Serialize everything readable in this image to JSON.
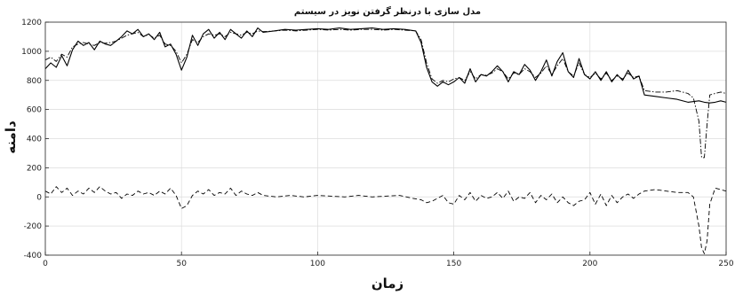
{
  "chart_data": {
    "type": "line",
    "title": "مدل سازی با درنظر گرفتن نویز در سیستم",
    "xlabel": "زمان",
    "ylabel": "دامنه",
    "xlim": [
      0,
      250
    ],
    "ylim": [
      -400,
      1200
    ],
    "xticks": [
      0,
      50,
      100,
      150,
      200,
      250
    ],
    "yticks": [
      -400,
      -200,
      0,
      200,
      400,
      600,
      800,
      1000,
      1200
    ],
    "grid": true,
    "legend": "none",
    "series": [
      {
        "style": "solid",
        "color": "#000000",
        "x": [
          0,
          2,
          4,
          6,
          8,
          10,
          12,
          14,
          16,
          18,
          20,
          22,
          24,
          26,
          28,
          30,
          32,
          34,
          36,
          38,
          40,
          42,
          44,
          46,
          48,
          50,
          52,
          54,
          56,
          58,
          60,
          62,
          64,
          66,
          68,
          70,
          72,
          74,
          76,
          78,
          80,
          84,
          88,
          92,
          96,
          100,
          104,
          108,
          112,
          116,
          120,
          124,
          128,
          132,
          136,
          138,
          140,
          142,
          144,
          146,
          148,
          150,
          152,
          154,
          156,
          158,
          160,
          162,
          164,
          166,
          168,
          170,
          172,
          174,
          176,
          178,
          180,
          182,
          184,
          186,
          188,
          190,
          192,
          194,
          196,
          198,
          200,
          202,
          204,
          206,
          208,
          210,
          212,
          214,
          216,
          218,
          220,
          224,
          228,
          232,
          236,
          240,
          242,
          244,
          246,
          248,
          250
        ],
        "y": [
          880,
          920,
          890,
          970,
          900,
          1010,
          1070,
          1040,
          1060,
          1010,
          1070,
          1050,
          1040,
          1070,
          1100,
          1140,
          1120,
          1150,
          1100,
          1120,
          1080,
          1130,
          1030,
          1050,
          980,
          870,
          960,
          1110,
          1040,
          1120,
          1150,
          1090,
          1130,
          1080,
          1150,
          1120,
          1090,
          1140,
          1100,
          1160,
          1130,
          1140,
          1150,
          1145,
          1150,
          1155,
          1150,
          1160,
          1150,
          1155,
          1160,
          1150,
          1155,
          1150,
          1140,
          1060,
          890,
          790,
          760,
          790,
          770,
          790,
          820,
          780,
          880,
          790,
          840,
          830,
          860,
          900,
          860,
          790,
          860,
          840,
          910,
          870,
          800,
          860,
          940,
          830,
          930,
          990,
          860,
          820,
          950,
          840,
          810,
          860,
          800,
          860,
          790,
          840,
          800,
          870,
          810,
          830,
          700,
          690,
          680,
          670,
          650,
          660,
          650,
          645,
          650,
          660,
          650
        ]
      },
      {
        "style": "dashdot",
        "color": "#000000",
        "x": [
          0,
          2,
          4,
          6,
          8,
          10,
          12,
          14,
          16,
          18,
          20,
          22,
          24,
          26,
          28,
          30,
          32,
          34,
          36,
          38,
          40,
          42,
          44,
          46,
          48,
          50,
          52,
          54,
          56,
          58,
          60,
          62,
          64,
          66,
          68,
          70,
          72,
          74,
          76,
          78,
          80,
          84,
          88,
          92,
          96,
          100,
          104,
          108,
          112,
          116,
          120,
          124,
          128,
          132,
          136,
          138,
          140,
          142,
          144,
          146,
          148,
          150,
          152,
          154,
          156,
          158,
          160,
          162,
          164,
          166,
          168,
          170,
          172,
          174,
          176,
          178,
          180,
          182,
          184,
          186,
          188,
          190,
          192,
          194,
          196,
          198,
          200,
          202,
          204,
          206,
          208,
          210,
          212,
          214,
          216,
          218,
          220,
          224,
          228,
          232,
          236,
          238,
          240,
          241,
          242,
          243,
          244,
          246,
          248,
          250
        ],
        "y": [
          940,
          960,
          930,
          980,
          960,
          1030,
          1050,
          1060,
          1050,
          1040,
          1060,
          1055,
          1060,
          1070,
          1090,
          1110,
          1120,
          1130,
          1100,
          1115,
          1090,
          1110,
          1050,
          1040,
          1000,
          920,
          980,
          1080,
          1060,
          1100,
          1120,
          1110,
          1120,
          1100,
          1130,
          1120,
          1110,
          1130,
          1120,
          1140,
          1135,
          1140,
          1145,
          1140,
          1145,
          1150,
          1145,
          1150,
          1145,
          1150,
          1150,
          1145,
          1150,
          1145,
          1140,
          1080,
          920,
          810,
          780,
          800,
          790,
          810,
          820,
          800,
          860,
          810,
          840,
          835,
          850,
          880,
          860,
          810,
          850,
          840,
          880,
          860,
          820,
          850,
          900,
          840,
          900,
          950,
          860,
          830,
          920,
          840,
          820,
          850,
          810,
          850,
          800,
          830,
          810,
          850,
          820,
          830,
          730,
          720,
          720,
          730,
          710,
          680,
          520,
          270,
          270,
          500,
          700,
          710,
          720,
          710
        ]
      },
      {
        "style": "dashed",
        "color": "#000000",
        "x": [
          0,
          2,
          4,
          6,
          8,
          10,
          12,
          14,
          16,
          18,
          20,
          22,
          24,
          26,
          28,
          30,
          32,
          34,
          36,
          38,
          40,
          42,
          44,
          46,
          48,
          50,
          52,
          54,
          56,
          58,
          60,
          62,
          64,
          66,
          68,
          70,
          72,
          74,
          76,
          78,
          80,
          85,
          90,
          95,
          100,
          105,
          110,
          115,
          120,
          125,
          130,
          135,
          138,
          140,
          142,
          144,
          146,
          148,
          150,
          152,
          154,
          156,
          158,
          160,
          162,
          164,
          166,
          168,
          170,
          172,
          174,
          176,
          178,
          180,
          182,
          184,
          186,
          188,
          190,
          192,
          194,
          196,
          198,
          200,
          202,
          204,
          206,
          208,
          210,
          212,
          214,
          216,
          218,
          220,
          224,
          228,
          232,
          236,
          238,
          240,
          241,
          242,
          243,
          244,
          246,
          248,
          250
        ],
        "y": [
          40,
          20,
          70,
          30,
          60,
          10,
          40,
          20,
          60,
          30,
          70,
          40,
          20,
          30,
          -10,
          20,
          10,
          40,
          20,
          30,
          10,
          40,
          20,
          60,
          10,
          -80,
          -60,
          10,
          40,
          20,
          50,
          10,
          30,
          20,
          60,
          10,
          40,
          20,
          10,
          30,
          10,
          0,
          10,
          0,
          10,
          5,
          0,
          10,
          0,
          5,
          10,
          -10,
          -20,
          -40,
          -30,
          -10,
          10,
          -40,
          -50,
          10,
          -20,
          30,
          -30,
          10,
          -10,
          0,
          30,
          -10,
          40,
          -30,
          0,
          -10,
          30,
          -40,
          10,
          -20,
          20,
          -40,
          0,
          -40,
          -60,
          -30,
          -20,
          30,
          -50,
          20,
          -60,
          10,
          -40,
          0,
          20,
          -10,
          20,
          40,
          50,
          40,
          30,
          30,
          0,
          -200,
          -350,
          -390,
          -300,
          -50,
          60,
          50,
          40
        ]
      }
    ]
  }
}
